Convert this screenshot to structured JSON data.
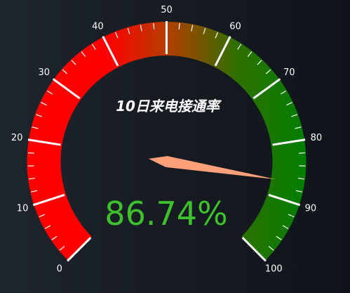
{
  "chart_data": {
    "type": "gauge",
    "title": "10日来电接通率",
    "value": 86.74,
    "value_text": "86.74%",
    "min": 0,
    "max": 100,
    "major_ticks": [
      0,
      10,
      20,
      30,
      40,
      50,
      60,
      70,
      80,
      90,
      100
    ],
    "tick_labels": [
      "0",
      "10",
      "20",
      "30",
      "40",
      "50",
      "60",
      "70",
      "80",
      "90",
      "100"
    ],
    "colors": {
      "low": "#ff0000",
      "mid": "#d53b00",
      "high": "#007f00",
      "top_low": "#3f6300",
      "pointer": "#ffa07a",
      "value_text": "#3fc02d",
      "tick": "#ffffff"
    }
  }
}
